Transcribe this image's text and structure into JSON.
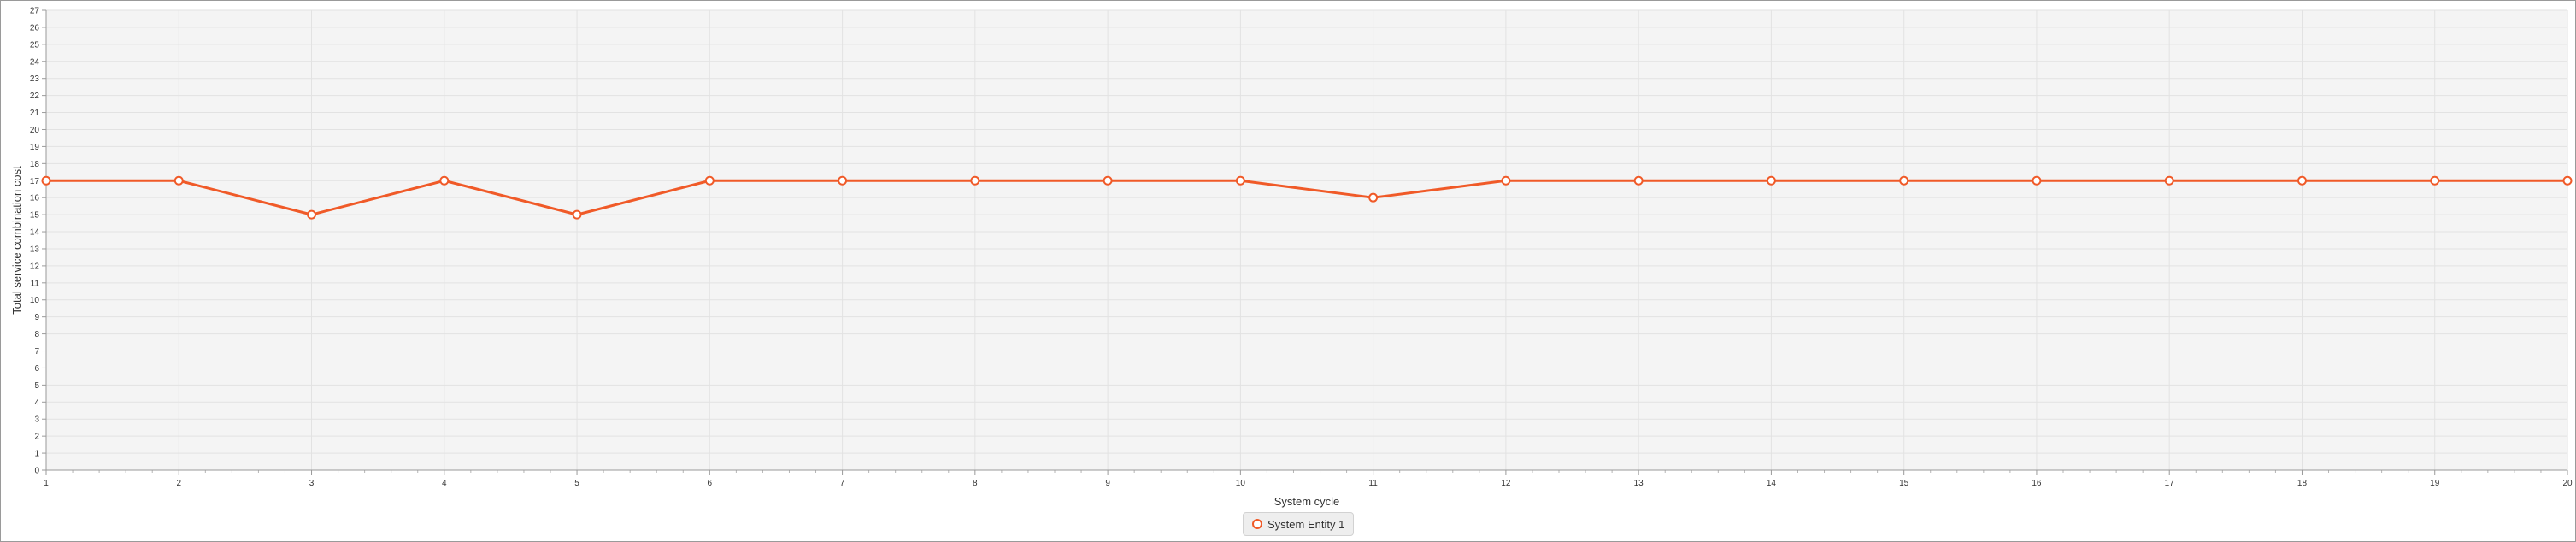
{
  "chart_data": {
    "type": "line",
    "title": "",
    "xlabel": "System cycle",
    "ylabel": "Total service combination cost",
    "x": [
      1,
      2,
      3,
      4,
      5,
      6,
      7,
      8,
      9,
      10,
      11,
      12,
      13,
      14,
      15,
      16,
      17,
      18,
      19,
      20
    ],
    "series": [
      {
        "name": "System Entity 1",
        "color": "#f05a28",
        "values": [
          17,
          17,
          15,
          17,
          15,
          17,
          17,
          17,
          17,
          17,
          16,
          17,
          17,
          17,
          17,
          17,
          17,
          17,
          17,
          17
        ]
      }
    ],
    "xlim": [
      1,
      20
    ],
    "ylim": [
      0,
      27
    ],
    "x_ticks": [
      1,
      2,
      3,
      4,
      5,
      6,
      7,
      8,
      9,
      10,
      11,
      12,
      13,
      14,
      15,
      16,
      17,
      18,
      19,
      20
    ],
    "y_ticks": [
      0,
      1,
      2,
      3,
      4,
      5,
      6,
      7,
      8,
      9,
      10,
      11,
      12,
      13,
      14,
      15,
      16,
      17,
      18,
      19,
      20,
      21,
      22,
      23,
      24,
      25,
      26,
      27
    ],
    "grid": true,
    "legend_position": "bottom-center"
  }
}
